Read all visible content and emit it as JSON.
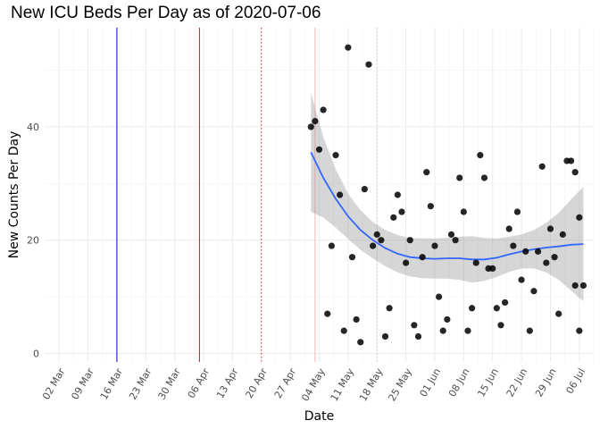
{
  "chart_data": {
    "type": "scatter",
    "title": "New ICU Beds Per Day as of 2020-07-06",
    "xlabel": "Date",
    "ylabel": "New Counts Per Day",
    "x_tick_labels": [
      "02 Mar",
      "09 Mar",
      "16 Mar",
      "23 Mar",
      "30 Mar",
      "06 Apr",
      "13 Apr",
      "20 Apr",
      "27 Apr",
      "04 May",
      "11 May",
      "18 May",
      "25 May",
      "01 Jun",
      "08 Jun",
      "15 Jun",
      "22 Jun",
      "29 Jun",
      "06 Jul"
    ],
    "y_ticks": [
      0,
      20,
      40
    ],
    "xlim_days": [
      -3.5,
      129.5
    ],
    "ylim": [
      -1.5,
      57.5
    ],
    "x_origin": "2020-03-02",
    "grid": true,
    "reference_lines": [
      {
        "day": 14,
        "style": "solid",
        "color": "#0000cc",
        "name": "blue-vline"
      },
      {
        "day": 34,
        "style": "solid",
        "color": "#b22222",
        "name": "red-vline"
      },
      {
        "day": 49,
        "style": "dotted",
        "color": "#cc3333",
        "name": "red-dotted-vline"
      },
      {
        "day": 62,
        "style": "solid",
        "color": "#f4b6b6",
        "name": "pink-vline"
      },
      {
        "day": 77,
        "style": "dotted",
        "color": "#cccccc",
        "name": "gray-dotted-vline"
      }
    ],
    "points": {
      "day": [
        61,
        62,
        63,
        64,
        65,
        66,
        67,
        68,
        69,
        70,
        71,
        72,
        73,
        74,
        75,
        76,
        77,
        78,
        79,
        80,
        81,
        82,
        83,
        84,
        85,
        86,
        87,
        88,
        89,
        90,
        91,
        92,
        93,
        94,
        95,
        96,
        97,
        98,
        99,
        100,
        101,
        102,
        103,
        104,
        105,
        106,
        107,
        108,
        109,
        110,
        111,
        112,
        113,
        114,
        115,
        116,
        117,
        118,
        119,
        120,
        121,
        122,
        123,
        124,
        125,
        126
      ],
      "value": [
        40,
        41,
        36,
        43,
        7,
        19,
        35,
        28,
        4,
        54,
        17,
        6,
        2,
        29,
        51,
        19,
        21,
        20,
        3,
        8,
        24,
        28,
        25,
        16,
        20,
        5,
        3,
        17,
        32,
        26,
        19,
        10,
        4,
        6,
        21,
        20,
        31,
        25,
        4,
        8,
        16,
        35,
        31,
        15,
        15,
        8,
        5,
        9,
        22,
        19,
        25,
        13,
        18,
        4,
        11,
        18,
        33,
        16,
        22,
        17,
        7,
        21,
        34,
        34,
        32,
        24
      ]
    },
    "extra_points": [
      {
        "day": 125,
        "value": 12
      },
      {
        "day": 126,
        "value": 4
      },
      {
        "day": 127,
        "value": 12
      }
    ],
    "smooth": {
      "method": "loess",
      "color": "#3366ff",
      "day": [
        61,
        64,
        67,
        70,
        73,
        76,
        79,
        82,
        85,
        88,
        91,
        94,
        97,
        100,
        103,
        106,
        109,
        112,
        115,
        118,
        121,
        124,
        127
      ],
      "fit": [
        35.5,
        31.0,
        27.3,
        24.2,
        21.8,
        20.0,
        18.6,
        17.6,
        17.0,
        16.8,
        16.7,
        16.8,
        16.8,
        16.6,
        16.6,
        16.9,
        17.5,
        18.0,
        18.4,
        18.7,
        18.9,
        19.2,
        19.3
      ],
      "lower": [
        25.0,
        24.0,
        22.2,
        20.2,
        18.3,
        16.8,
        15.4,
        14.3,
        13.6,
        13.3,
        13.2,
        13.2,
        13.0,
        12.5,
        12.8,
        13.5,
        14.4,
        15.0,
        15.0,
        14.3,
        13.0,
        11.1,
        9.2
      ],
      "upper": [
        46.0,
        38.2,
        32.5,
        28.2,
        25.3,
        23.2,
        21.8,
        20.9,
        20.4,
        20.3,
        20.3,
        20.4,
        20.6,
        20.7,
        20.4,
        20.3,
        20.6,
        21.0,
        21.8,
        23.1,
        24.8,
        27.2,
        29.4
      ],
      "band_color": "#999999"
    }
  }
}
